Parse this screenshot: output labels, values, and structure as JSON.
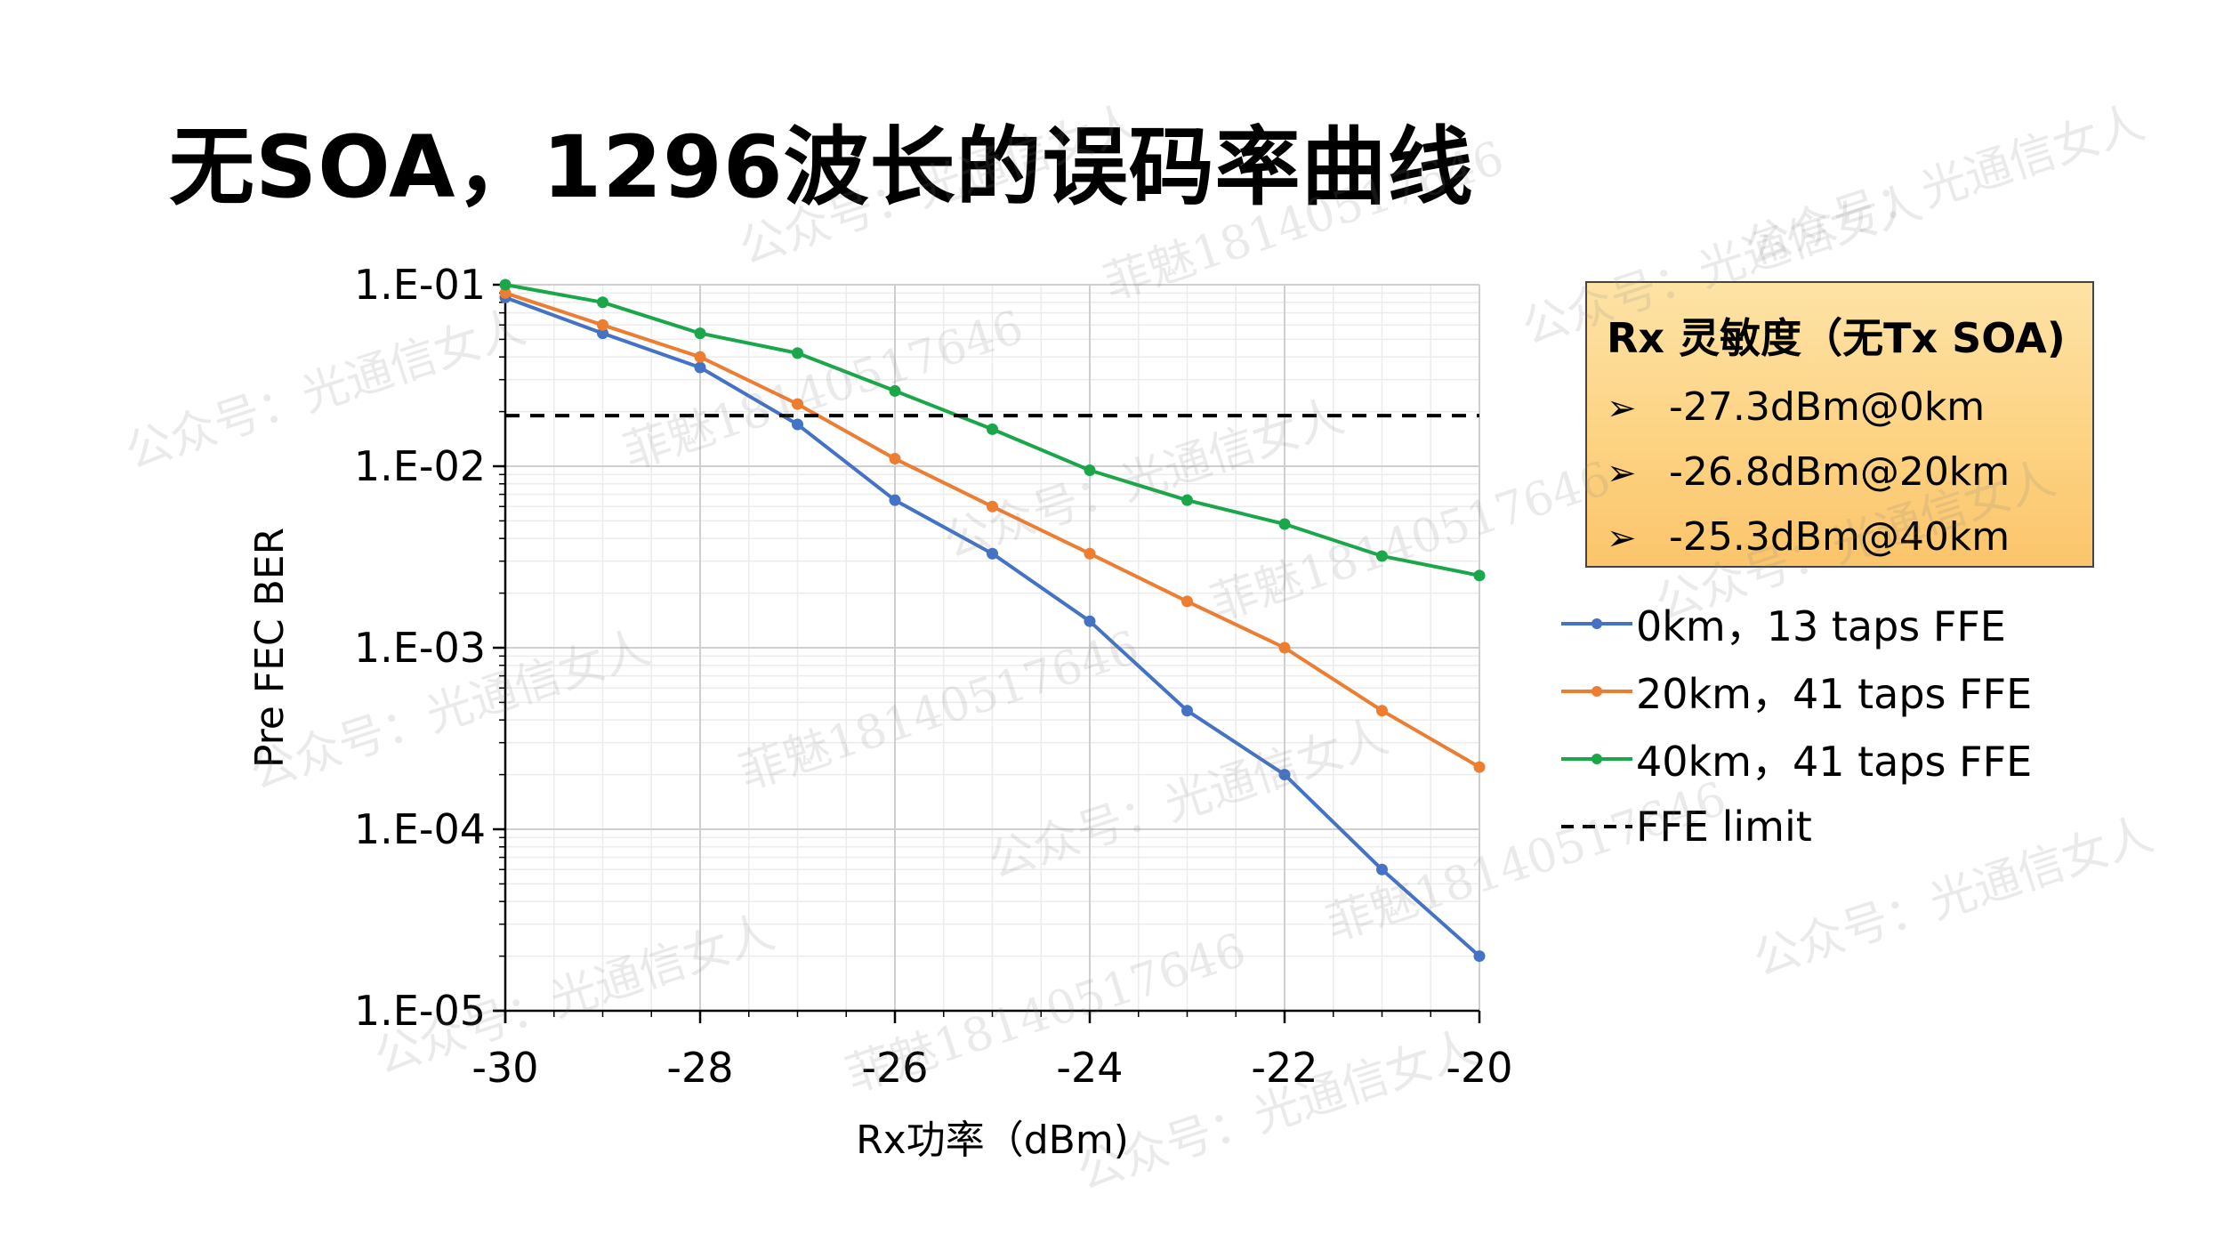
{
  "slide": {
    "title": "无SOA，1296波长的误码率曲线"
  },
  "sensitivity_box": {
    "title": "Rx 灵敏度（无Tx SOA)",
    "bullet": "➢",
    "items": [
      "-27.3dBm@0km",
      "-26.8dBm@20km",
      "-25.3dBm@40km"
    ]
  },
  "watermarks": [
    "公众号：光通信女人",
    "菲魅18140517646",
    "公众号：光通信女人",
    "公众号：光通信女人",
    "菲魅18140517646",
    "公众号：光通信女人",
    "菲魅18140517646",
    "公众号：光通信女人",
    "菲魅18140517646",
    "公众号：光通信女人",
    "公众号：光通信女人",
    "菲魅18140517646",
    "公众号：光通信女人",
    "菲魅18140517646",
    "公众号：光通信女人",
    "公众号：光通信女人",
    "公众号：光通信女人"
  ],
  "chart_data": {
    "type": "line",
    "title": "",
    "xlabel": "Rx功率（dBm)",
    "ylabel": "Pre FEC BER",
    "y_scale": "log",
    "xlim": [
      -30,
      -20
    ],
    "ylim": [
      1e-05,
      0.1
    ],
    "x_ticks": [
      -30,
      -28,
      -26,
      -24,
      -22,
      -20
    ],
    "x_tick_labels": [
      "-30",
      "-28",
      "-26",
      "-24",
      "-22",
      "-20"
    ],
    "y_ticks": [
      0.1,
      0.01,
      0.001,
      0.0001,
      1e-05
    ],
    "y_tick_labels": [
      "1.E-01",
      "1.E-02",
      "1.E-03",
      "1.E-04",
      "1.E-05"
    ],
    "grid": true,
    "legend_position": "right",
    "series": [
      {
        "name": "0km，13 taps FFE",
        "color": "#4472c4",
        "x": [
          -30,
          -29,
          -28,
          -27,
          -26,
          -25,
          -24,
          -23,
          -22,
          -21,
          -20
        ],
        "y": [
          0.085,
          0.054,
          0.035,
          0.017,
          0.0065,
          0.0033,
          0.0014,
          0.00045,
          0.0002,
          6e-05,
          2e-05
        ]
      },
      {
        "name": "20km，41 taps FFE",
        "color": "#ed7d31",
        "x": [
          -30,
          -29,
          -28,
          -27,
          -26,
          -25,
          -24,
          -23,
          -22,
          -21,
          -20
        ],
        "y": [
          0.09,
          0.06,
          0.04,
          0.022,
          0.011,
          0.006,
          0.0033,
          0.0018,
          0.001,
          0.00045,
          0.00022
        ]
      },
      {
        "name": "40km，41 taps FFE",
        "color": "#19a74a",
        "x": [
          -30,
          -29,
          -28,
          -27,
          -26,
          -25,
          -24,
          -23,
          -22,
          -21,
          -20
        ],
        "y": [
          0.1,
          0.08,
          0.054,
          0.042,
          0.026,
          0.016,
          0.0095,
          0.0065,
          0.0048,
          0.0032,
          0.0025
        ]
      },
      {
        "name": "FFE limit",
        "color": "#000000",
        "dashed": true,
        "x": [
          -30,
          -20
        ],
        "y": [
          0.019,
          0.019
        ]
      }
    ]
  }
}
